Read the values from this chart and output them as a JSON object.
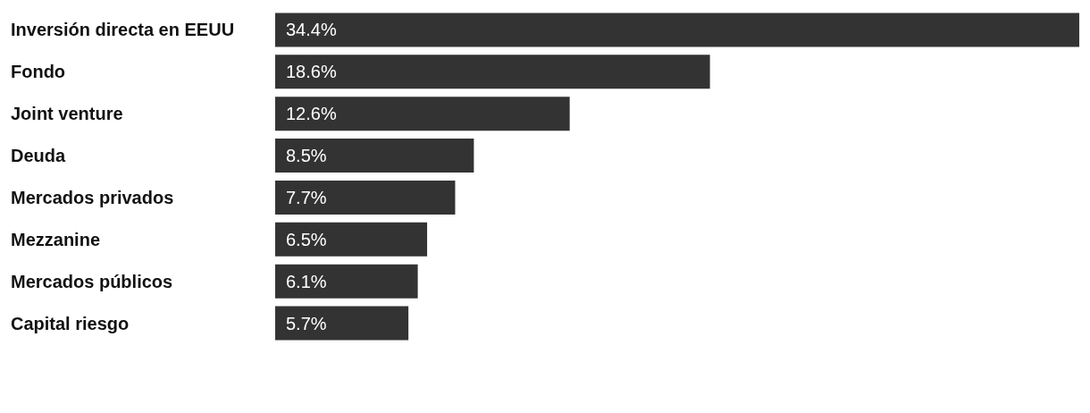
{
  "chart_data": {
    "type": "bar",
    "orientation": "horizontal",
    "categories": [
      "Inversión directa en EEUU",
      "Fondo",
      "Joint venture",
      "Deuda",
      "Mercados privados",
      "Mezzanine",
      "Mercados públicos",
      "Capital riesgo"
    ],
    "values": [
      34.4,
      18.6,
      12.6,
      8.5,
      7.7,
      6.5,
      6.1,
      5.7
    ],
    "value_labels": [
      "34.4%",
      "18.6%",
      "12.6%",
      "8.5%",
      "7.7%",
      "6.5%",
      "6.1%",
      "5.7%"
    ],
    "color": "#333333"
  }
}
